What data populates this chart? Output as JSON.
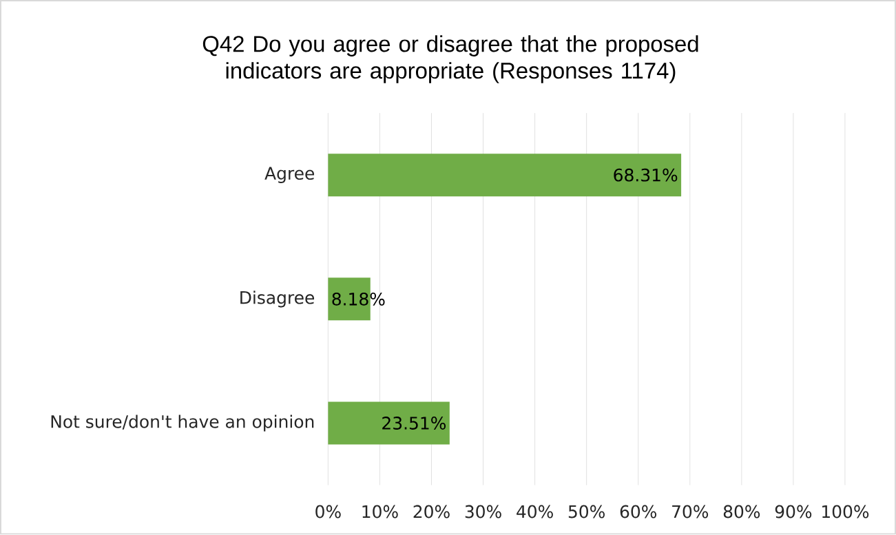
{
  "chart_data": {
    "type": "bar",
    "orientation": "horizontal",
    "title": "Q42 Do you agree or disagree that the proposed indicators are appropriate (Responses 1174)",
    "categories": [
      "Agree",
      "Disagree",
      "Not sure/don't have an opinion"
    ],
    "values": [
      68.31,
      8.18,
      23.51
    ],
    "value_labels": [
      "68.31%",
      "8.18%",
      "23.51%"
    ],
    "color": "#70ad47",
    "xlim": [
      0,
      100
    ],
    "xticks": [
      {
        "value": 0,
        "label": "0%"
      },
      {
        "value": 10,
        "label": "10%"
      },
      {
        "value": 20,
        "label": "20%"
      },
      {
        "value": 30,
        "label": "30%"
      },
      {
        "value": 40,
        "label": "40%"
      },
      {
        "value": 50,
        "label": "50%"
      },
      {
        "value": 60,
        "label": "60%"
      },
      {
        "value": 70,
        "label": "70%"
      },
      {
        "value": 80,
        "label": "80%"
      },
      {
        "value": 90,
        "label": "90%"
      },
      {
        "value": 100,
        "label": "100%"
      }
    ],
    "grid": "x"
  }
}
